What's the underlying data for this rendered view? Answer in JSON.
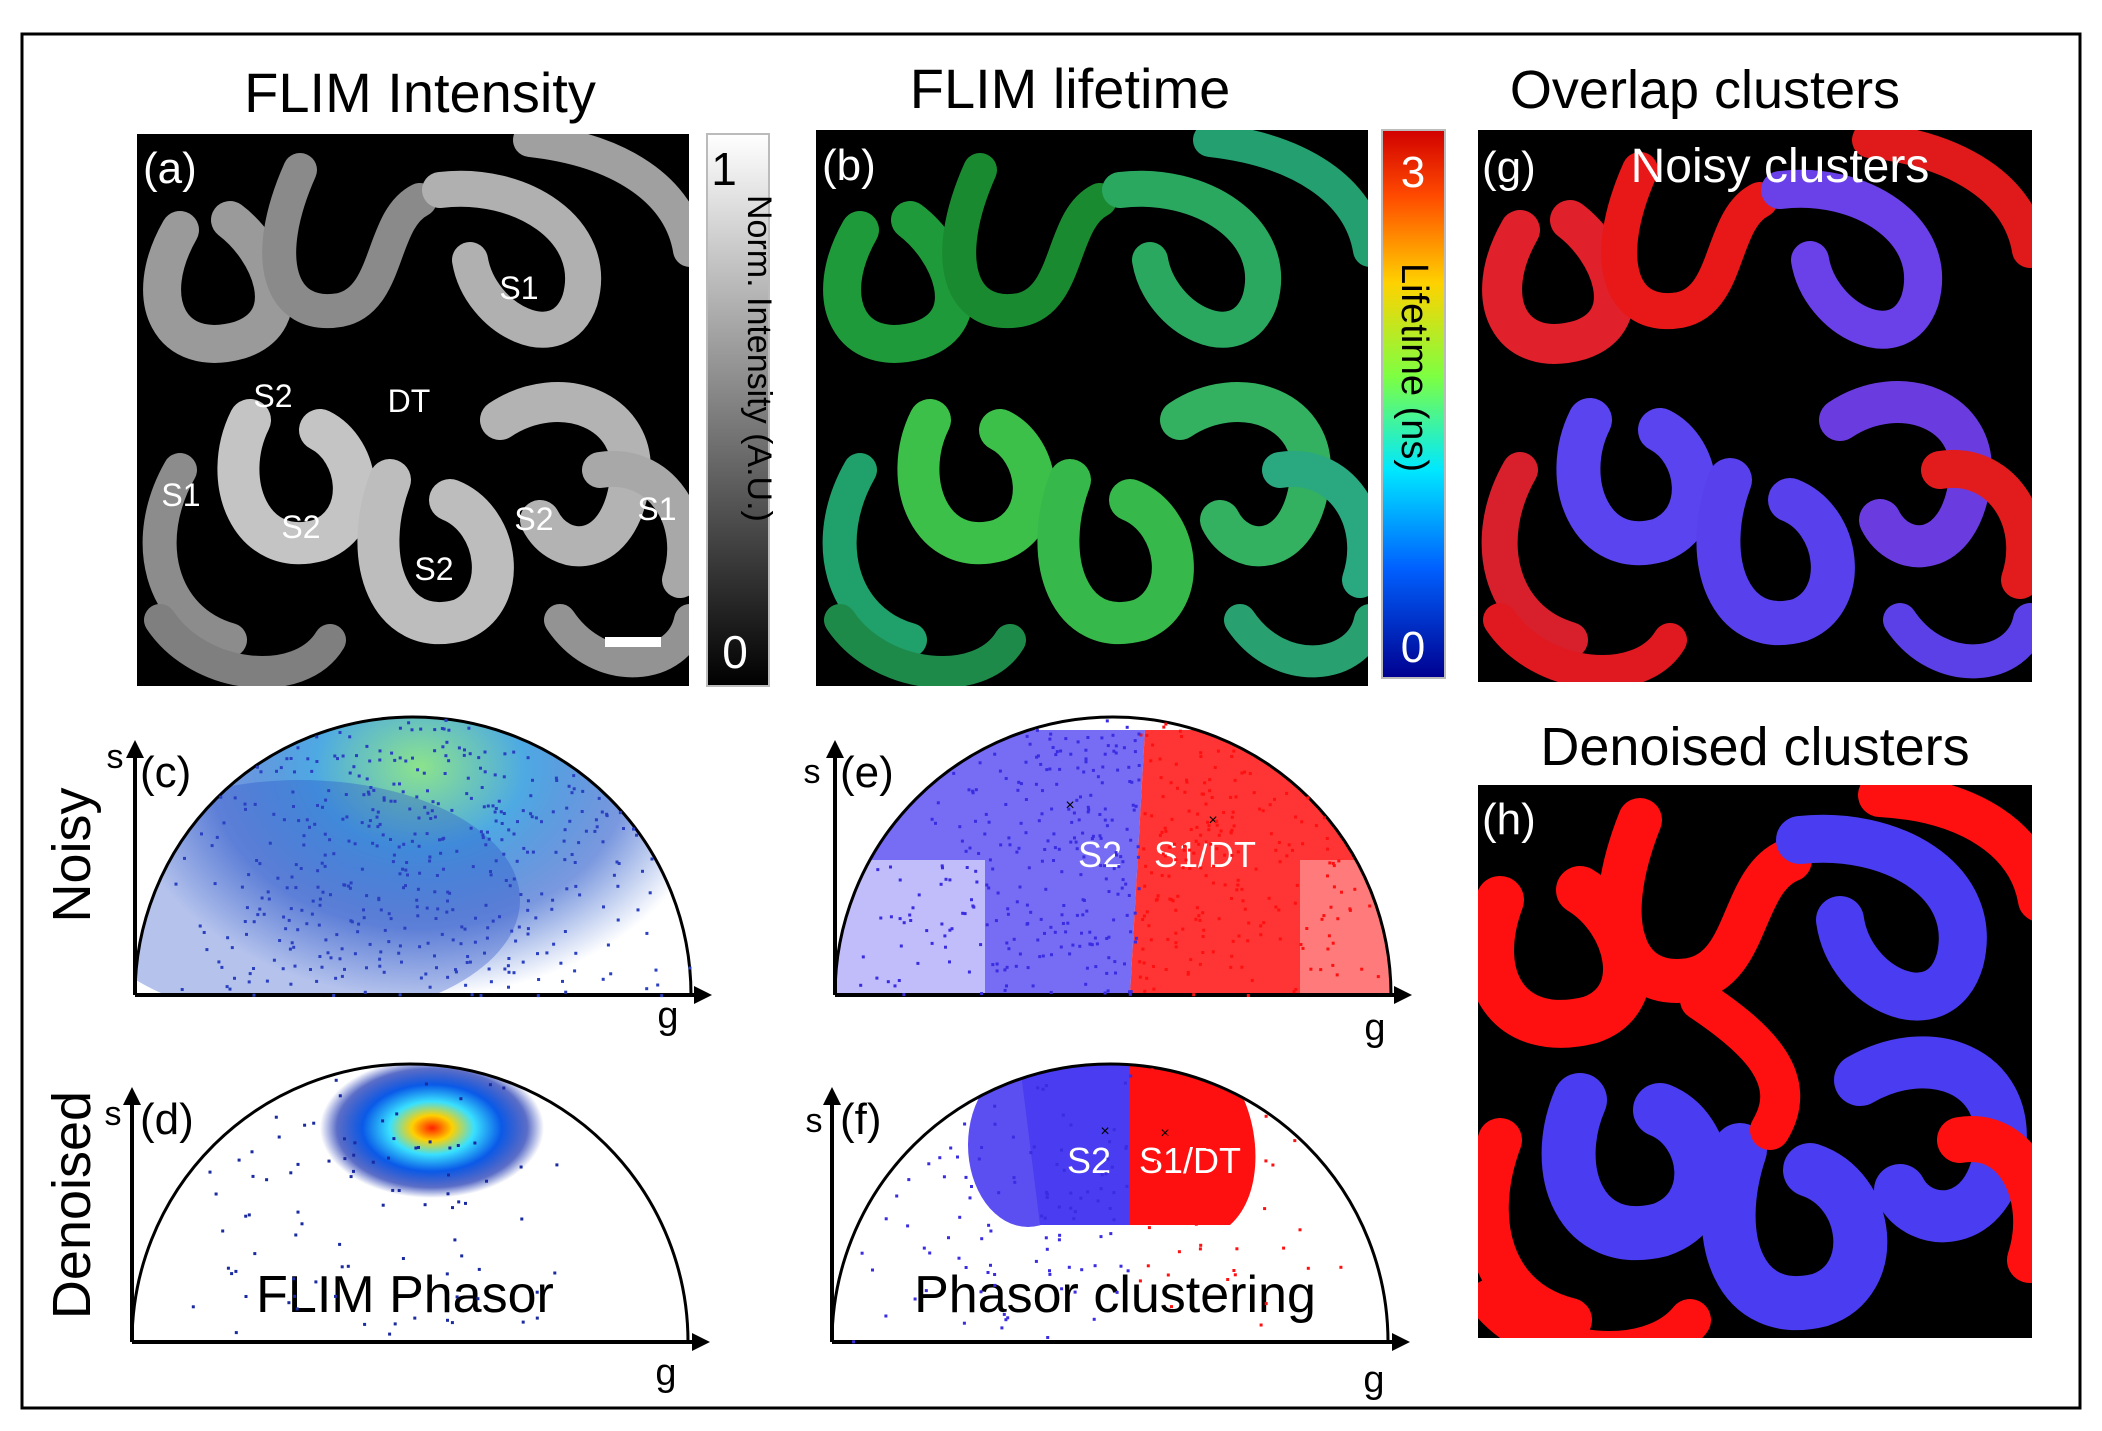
{
  "titles": {
    "intensity": "FLIM Intensity",
    "lifetime": "FLIM lifetime",
    "overlap": "Overlap clusters",
    "denoised_clusters": "Denoised clusters",
    "noisy_clusters": "Noisy clusters"
  },
  "panels": {
    "a": "(a)",
    "b": "(b)",
    "c": "(c)",
    "d": "(d)",
    "e": "(e)",
    "f": "(f)",
    "g": "(g)",
    "h": "(h)"
  },
  "tissue_labels": {
    "s1_top": "S1",
    "s2_left": "S2",
    "dt": "DT",
    "s1_left": "S1",
    "s2_mid": "S2",
    "s2_center": "S2",
    "s2_right": "S2",
    "s1_right": "S1"
  },
  "intensity_bar": {
    "max": "1",
    "min": "0",
    "label": "Norm. Intensity (A.U.)"
  },
  "lifetime_bar": {
    "max": "3",
    "min": "0",
    "label": "Lifetime (ns)"
  },
  "row_labels": {
    "noisy": "Noisy",
    "denoised": "Denoised"
  },
  "axes": {
    "s": "s",
    "g": "g"
  },
  "cluster_labels": {
    "s2": "S2",
    "s1dt": "S1/DT"
  },
  "captions": {
    "phasor": "FLIM Phasor",
    "clustering": "Phasor clustering"
  },
  "colors": {
    "cluster_blue": "#4a3cf0",
    "cluster_red": "#ff1010",
    "cluster_scatter_blue": "#3a2ce0",
    "image_bg": "#000000"
  }
}
